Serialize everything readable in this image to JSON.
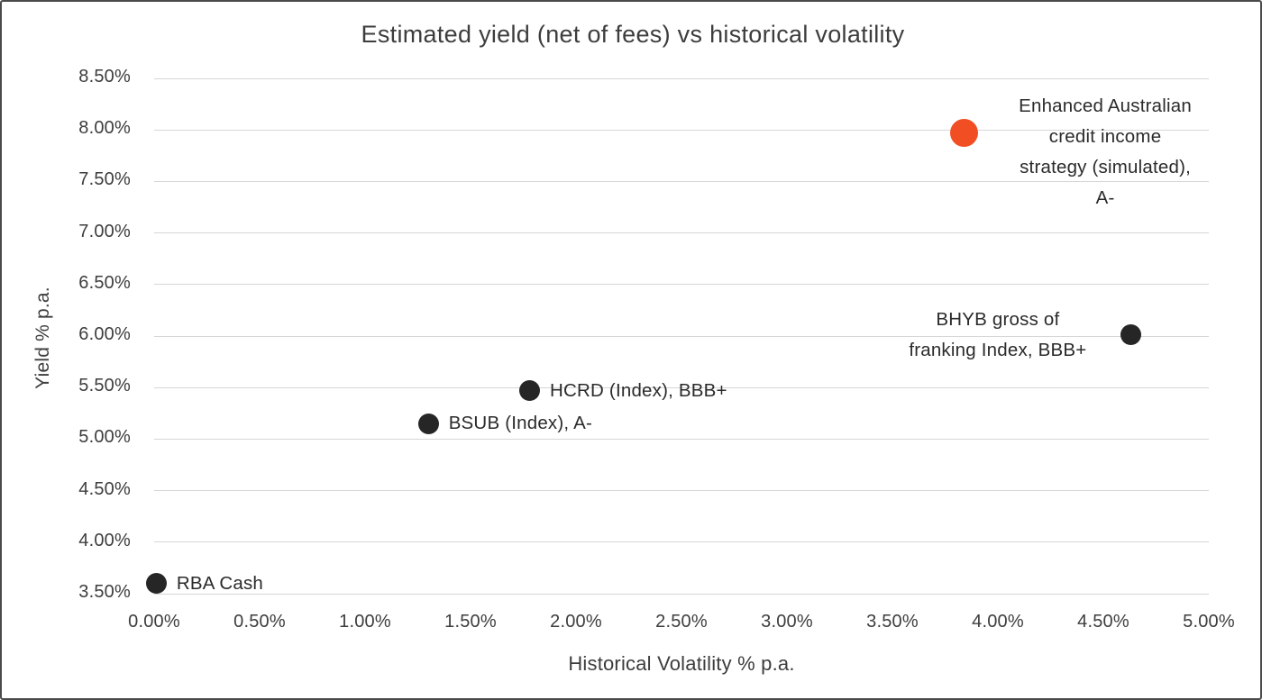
{
  "window": {
    "background": "#ffffff",
    "border_color": "#4a4a4a"
  },
  "chart_data": {
    "type": "scatter",
    "title": "Estimated yield (net of fees) vs historical volatility",
    "xlabel": "Historical Volatility % p.a.",
    "ylabel": "Yield % p.a.",
    "xlim": [
      0,
      5
    ],
    "ylim": [
      3.5,
      8.5
    ],
    "x_tick_step": 0.5,
    "y_tick_step": 0.5,
    "tick_label_format": "two-decimal-percent",
    "grid": "horizontal-only",
    "legend": "none",
    "gridline_color": "#d6d6d6",
    "text_color": "#3d3d3d",
    "point_label_color": "#2b2b2b",
    "default_point_color": "#262626",
    "highlight_point_color": "#F14E24",
    "points": [
      {
        "label": "RBA Cash",
        "label_lines": [
          "RBA Cash"
        ],
        "x": 0.01,
        "y": 3.6,
        "color": "#262626",
        "diameter": 23,
        "label_side": "right",
        "label_align": "left"
      },
      {
        "label": "BSUB (Index), A-",
        "label_lines": [
          "BSUB (Index), A-"
        ],
        "x": 1.3,
        "y": 5.15,
        "color": "#262626",
        "diameter": 23,
        "label_side": "right",
        "label_align": "left"
      },
      {
        "label": "HCRD (Index), BBB+",
        "label_lines": [
          "HCRD (Index), BBB+"
        ],
        "x": 1.78,
        "y": 5.47,
        "color": "#262626",
        "diameter": 23,
        "label_side": "right",
        "label_align": "left"
      },
      {
        "label": "BHYB gross of franking Index, BBB+",
        "label_lines": [
          "BHYB gross of",
          "franking Index, BBB+"
        ],
        "x": 4.63,
        "y": 6.01,
        "color": "#262626",
        "diameter": 23,
        "label_side": "left",
        "label_align": "center",
        "label_width": 250,
        "label_dy": -34
      },
      {
        "label": "Enhanced Australian credit income strategy (simulated), A-",
        "label_lines": [
          "Enhanced Australian",
          "credit income",
          "strategy (simulated),",
          "A-"
        ],
        "x": 3.84,
        "y": 7.97,
        "color": "#F14E24",
        "diameter": 31,
        "label_side": "right",
        "label_align": "center",
        "label_width": 260,
        "label_dy": -47
      }
    ]
  }
}
